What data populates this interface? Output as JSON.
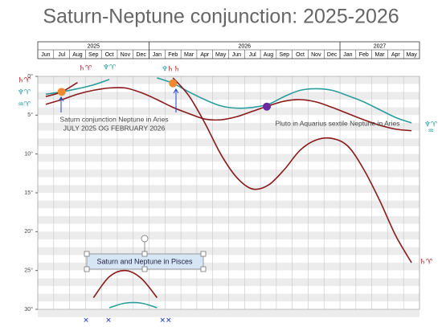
{
  "chart_data": {
    "type": "line",
    "title": "Saturn-Neptune conjunction: 2025-2026",
    "years": [
      {
        "label": "2025",
        "months": 7
      },
      {
        "label": "2026",
        "months": 12
      },
      {
        "label": "2027",
        "months": 5
      }
    ],
    "categories": [
      "Jun",
      "Jul",
      "Aug",
      "Sep",
      "Oct",
      "Nov",
      "Dec",
      "Jan",
      "Feb",
      "Mar",
      "Apr",
      "May",
      "Jun",
      "Jul",
      "Aug",
      "Sep",
      "Oct",
      "Nov",
      "Dec",
      "Jan",
      "Feb",
      "Mar",
      "Apr",
      "May"
    ],
    "ylim": [
      0,
      30
    ],
    "y_inverted": true,
    "yticks": [
      {
        "value": 0,
        "label": "0°"
      },
      {
        "value": 5,
        "label": "5°"
      },
      {
        "value": 10,
        "label": "10°"
      },
      {
        "value": 15,
        "label": "15°"
      },
      {
        "value": 20,
        "label": "20°"
      },
      {
        "value": 25,
        "label": "25°"
      },
      {
        "value": 30,
        "label": "30°"
      }
    ],
    "series": [
      {
        "color": "#8b1a1a",
        "values": [
          3.6,
          3,
          2.3,
          1.8,
          1.5,
          1.5,
          2.1,
          3,
          4,
          4.8,
          5.5,
          5.6,
          5.2,
          4.5,
          3.8,
          3.2,
          3,
          3.3,
          4,
          4.8,
          5.6,
          6.3,
          6.8,
          7
        ]
      },
      {
        "color": "#2a9d9d",
        "values": [
          2.3,
          2,
          1.6,
          1.1,
          0.4,
          null,
          null,
          0.2,
          0.9,
          2,
          3,
          3.8,
          4.1,
          4,
          3.6,
          2.6,
          1.8,
          1.6,
          1.8,
          2.5,
          3.3,
          4.3,
          5.3,
          6
        ]
      },
      {
        "color": "#8b1a1a",
        "values": [
          2.6,
          2,
          0.8,
          null,
          null,
          null,
          null,
          null,
          0.2,
          2.5,
          6,
          10,
          13,
          14.5,
          14,
          12,
          9.5,
          8.2,
          8,
          9,
          12,
          16,
          20.5,
          24
        ]
      },
      {
        "color": "#8b1a1a",
        "values": [
          null,
          null,
          null,
          28.5,
          25.8,
          25,
          26,
          28.5,
          null,
          null,
          null,
          null,
          null,
          null,
          null,
          null,
          null,
          null,
          null,
          null,
          null,
          null,
          null,
          null
        ]
      },
      {
        "color": "#2a9d9d",
        "values": [
          null,
          null,
          null,
          null,
          29.8,
          29.2,
          29.2,
          29.8,
          null,
          null,
          null,
          null,
          null,
          null,
          null,
          null,
          null,
          null,
          null,
          null,
          null,
          null,
          null,
          null
        ]
      }
    ],
    "markers": [
      {
        "x": 1,
        "y": 2,
        "color": "#f08a30"
      },
      {
        "x": 8,
        "y": 0.9,
        "color": "#f08a30"
      },
      {
        "x": 13.9,
        "y": 3.9,
        "color": "#6a2aa0"
      }
    ],
    "annotations": [
      "Saturn conjunction Neptune in Aries",
      "JULY 2025 OG FEBRUARY 2026",
      "Pluto in Aquarius sextile Neptune in Aries",
      "Saturn and Neptune in Pisces"
    ],
    "glyphs": [
      {
        "text": "♄♈",
        "color": "#b02020"
      },
      {
        "text": "♆♈",
        "color": "#2a9d9d"
      },
      {
        "text": "♒♈",
        "color": "#2a9d9d"
      },
      {
        "text": "♄♈",
        "color": "#b02020"
      },
      {
        "text": "♆♈",
        "color": "#2a9d9d"
      },
      {
        "text": "♆",
        "color": "#2a9d9d"
      },
      {
        "text": "♄♄",
        "color": "#b02020"
      },
      {
        "text": "♆♈",
        "color": "#2a9d9d"
      },
      {
        "text": "♒",
        "color": "#2a9d9d"
      },
      {
        "text": "♄♈",
        "color": "#b02020"
      },
      {
        "text": "✕",
        "color": "#2040c0"
      },
      {
        "text": "✕",
        "color": "#2040c0"
      },
      {
        "text": "✕✕",
        "color": "#2040c0"
      }
    ]
  }
}
